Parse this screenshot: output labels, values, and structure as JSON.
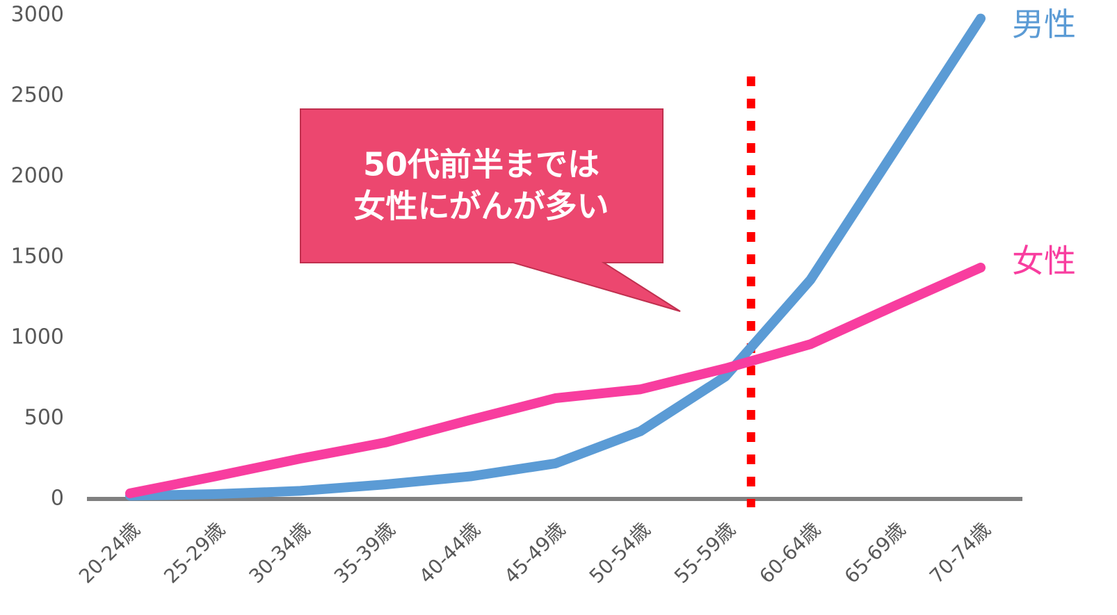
{
  "chart_data": {
    "type": "line",
    "categories": [
      "20-24歳",
      "25-29歳",
      "30-34歳",
      "35-39歳",
      "40-44歳",
      "45-49歳",
      "50-54歳",
      "55-59歳",
      "60-64歳",
      "65-69歳",
      "70-74歳"
    ],
    "series": [
      {
        "name": "男性",
        "color": "#5b9bd5",
        "values": [
          20,
          30,
          50,
          90,
          140,
          220,
          420,
          760,
          1360,
          2170,
          2980
        ]
      },
      {
        "name": "女性",
        "color": "#f83d9f",
        "values": [
          35,
          140,
          250,
          350,
          490,
          625,
          680,
          810,
          960,
          1200,
          1435
        ]
      }
    ],
    "ylim": [
      0,
      3000
    ],
    "yticks": [
      0,
      500,
      1000,
      1500,
      2000,
      2500,
      3000
    ],
    "grid": false,
    "annotation": [
      "50代前半までは",
      "女性にがんが多い"
    ]
  }
}
